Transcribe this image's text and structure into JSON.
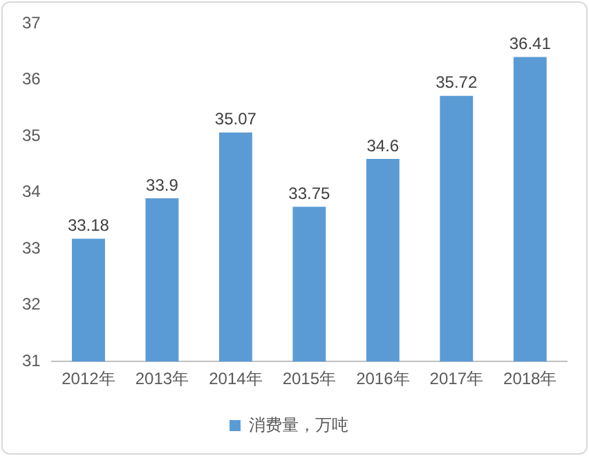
{
  "chart_data": {
    "type": "bar",
    "categories": [
      "2012年",
      "2013年",
      "2014年",
      "2015年",
      "2016年",
      "2017年",
      "2018年"
    ],
    "series": [
      {
        "name": "消费量，万吨",
        "color": "#5b9bd5",
        "values": [
          33.18,
          33.9,
          35.07,
          33.75,
          34.6,
          35.72,
          36.41
        ]
      }
    ],
    "ylim": [
      31,
      37
    ],
    "yticks": [
      31,
      32,
      33,
      34,
      35,
      36,
      37
    ],
    "grid": false,
    "legend": "bottom",
    "data_labels": true
  }
}
